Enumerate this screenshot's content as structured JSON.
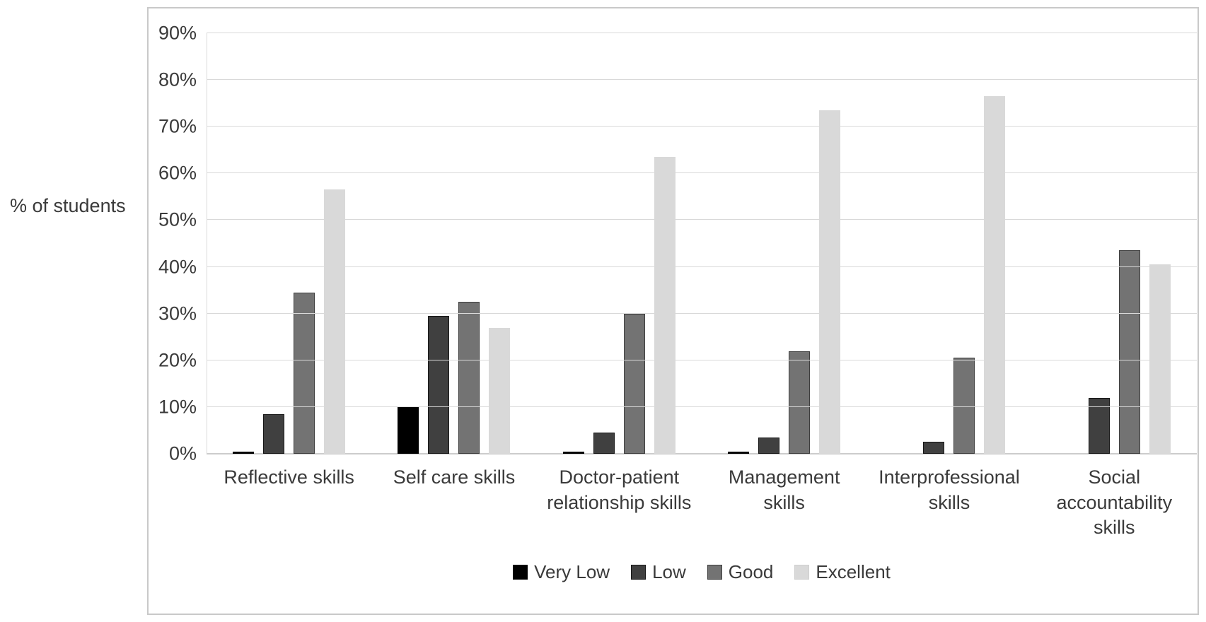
{
  "figure": {
    "ylabel": "% of students"
  },
  "chart_data": {
    "type": "bar",
    "title": "",
    "xlabel": "",
    "ylabel": "% of students",
    "ylim": [
      0,
      90
    ],
    "ytick_step": 10,
    "ytick_labels": [
      "0%",
      "10%",
      "20%",
      "30%",
      "40%",
      "50%",
      "60%",
      "70%",
      "80%",
      "90%"
    ],
    "grid": true,
    "legend_position": "bottom",
    "categories": [
      "Reflective skills",
      "Self care skills",
      "Doctor-patient\nrelationship skills",
      "Management\nskills",
      "Interprofessional\nskills",
      "Social\naccountability\nskills"
    ],
    "series": [
      {
        "name": "Very Low",
        "color": "#000000",
        "values": [
          0.5,
          10,
          0.5,
          0.5,
          0,
          0
        ]
      },
      {
        "name": "Low",
        "color": "#404040",
        "values": [
          8.5,
          29.5,
          4.5,
          3.5,
          2.5,
          12
        ]
      },
      {
        "name": "Good",
        "color": "#737373",
        "values": [
          34.5,
          32.5,
          30,
          22,
          20.5,
          43.5
        ]
      },
      {
        "name": "Excellent",
        "color": "#d9d9d9",
        "values": [
          56.5,
          27,
          63.5,
          73.5,
          76.5,
          40.5
        ]
      }
    ],
    "colors": {
      "gridline": "#d9d9d9",
      "frame_border": "#c9c9c9",
      "text": "#3a3a3a"
    }
  }
}
